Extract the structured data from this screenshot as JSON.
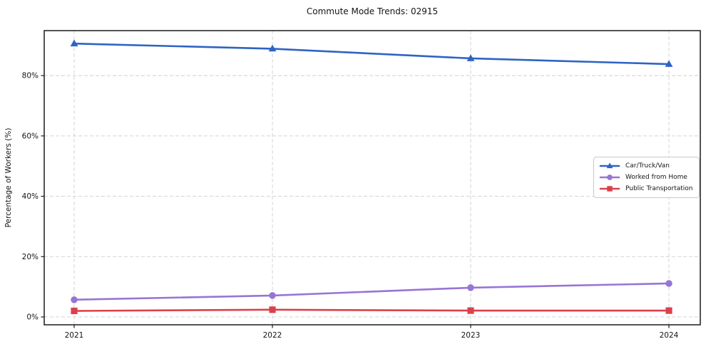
{
  "figure": {
    "title": "Commute Mode Trends: 02915"
  },
  "chart_data": {
    "type": "line",
    "title": "Commute Mode Trends: 02915",
    "xlabel": "",
    "ylabel": "Percentage of Workers (%)",
    "x": [
      2021,
      2022,
      2023,
      2024
    ],
    "x_tick_labels": [
      "2021",
      "2022",
      "2023",
      "2024"
    ],
    "y_ticks": [
      0,
      20,
      40,
      60,
      80
    ],
    "y_tick_labels": [
      "0%",
      "20%",
      "40%",
      "60%",
      "80%"
    ],
    "ylim": [
      -2.6,
      94.9
    ],
    "grid": true,
    "grid_style": "dashed",
    "legend_position": "center right",
    "series": [
      {
        "name": "Car/Truck/Van",
        "marker": "triangle",
        "color": "#2e64c3",
        "values": [
          90.6,
          88.9,
          85.7,
          83.8
        ]
      },
      {
        "name": "Worked from Home",
        "marker": "circle",
        "color": "#9775d4",
        "values": [
          5.7,
          7.1,
          9.7,
          11.1
        ]
      },
      {
        "name": "Public Transportation",
        "marker": "square",
        "color": "#dc404b",
        "values": [
          2.0,
          2.4,
          2.1,
          2.1
        ]
      }
    ]
  }
}
